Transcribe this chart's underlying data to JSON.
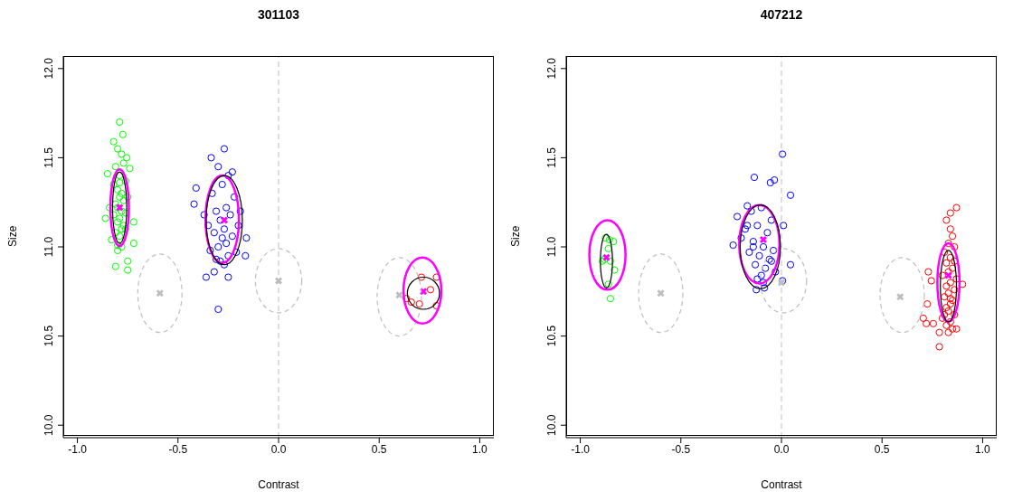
{
  "chart_data": [
    {
      "type": "scatter",
      "title": "301103",
      "xlabel": "Contrast",
      "ylabel": "Size",
      "xlim": [
        -1.07,
        1.07
      ],
      "ylim": [
        9.93,
        12.07
      ],
      "xticks": [
        {
          "value": -1,
          "label": "-1.0"
        },
        {
          "value": -0.5,
          "label": "-0.5"
        },
        {
          "value": 0,
          "label": "0.0"
        },
        {
          "value": 0.5,
          "label": "0.5"
        },
        {
          "value": 1,
          "label": "1.0"
        }
      ],
      "yticks": [
        {
          "value": 10,
          "label": "10.0"
        },
        {
          "value": 10.5,
          "label": "10.5"
        },
        {
          "value": 11,
          "label": "11.0"
        },
        {
          "value": 11.5,
          "label": "11.5"
        },
        {
          "value": 12,
          "label": "12.0"
        }
      ],
      "grid": false,
      "legend": false,
      "ref_lines": [
        {
          "axis": "x",
          "value": 0,
          "color": "#bebebe",
          "line_style": "dashed"
        }
      ],
      "series": [
        {
          "marker": "circle",
          "color": "#00ff00",
          "x": [
            -0.79,
            -0.774,
            -0.82,
            -0.755,
            -0.74,
            -0.85,
            -0.8,
            -0.81,
            -0.75,
            -0.75,
            -0.72,
            -0.86,
            -0.72,
            -0.8,
            -0.78,
            -0.77,
            -0.81,
            -0.79,
            -0.76,
            -0.82,
            -0.8,
            -0.78,
            -0.79,
            -0.77,
            -0.81,
            -0.8,
            -0.78,
            -0.76,
            -0.82,
            -0.79,
            -0.8,
            -0.77,
            -0.78,
            -0.81,
            -0.79,
            -0.83,
            -0.75,
            -0.84,
            -0.76,
            -0.79,
            -0.8,
            -0.78
          ],
          "values": [
            11.7,
            11.63,
            11.59,
            11.5,
            11.44,
            11.41,
            10.98,
            10.89,
            10.92,
            10.87,
            11.02,
            11.16,
            11.14,
            11.55,
            11.52,
            11.47,
            11.45,
            11.4,
            11.37,
            11.35,
            11.32,
            11.3,
            11.28,
            11.26,
            11.24,
            11.22,
            11.2,
            11.19,
            11.18,
            11.16,
            11.14,
            11.12,
            11.1,
            11.08,
            11.06,
            11.04,
            11.28,
            11.22,
            11.1,
            11.36,
            11.01,
            11.0
          ]
        },
        {
          "marker": "circle",
          "color": "#0000ff",
          "x": [
            -0.27,
            -0.335,
            -0.23,
            -0.41,
            -0.42,
            -0.16,
            -0.165,
            -0.36,
            -0.25,
            -0.3,
            -0.32,
            -0.3,
            -0.25,
            -0.28,
            -0.33,
            -0.22,
            -0.26,
            -0.31,
            -0.24,
            -0.29,
            -0.35,
            -0.2,
            -0.27,
            -0.32,
            -0.23,
            -0.28,
            -0.26,
            -0.3,
            -0.34,
            -0.21,
            -0.25,
            -0.29,
            -0.27,
            -0.37,
            -0.19,
            -0.31
          ],
          "values": [
            11.55,
            11.5,
            11.42,
            11.33,
            11.24,
            11.05,
            10.95,
            10.83,
            10.83,
            10.65,
            10.86,
            11.45,
            11.4,
            11.35,
            11.3,
            11.28,
            11.22,
            11.2,
            11.18,
            11.15,
            11.12,
            11.12,
            11.1,
            11.08,
            11.06,
            11.05,
            11.02,
            11.0,
            10.98,
            10.97,
            10.95,
            10.92,
            10.9,
            11.18,
            11.2,
            10.93
          ]
        },
        {
          "marker": "circle",
          "color": "#ff0000",
          "x": [
            0.71,
            0.785,
            0.755,
            0.635,
            0.66,
            0.7,
            0.785
          ],
          "values": [
            10.83,
            10.83,
            10.76,
            10.71,
            10.69,
            10.68,
            10.67
          ]
        },
        {
          "marker": "cross",
          "color": "#bebebe",
          "x": [
            -0.59,
            0,
            0.6
          ],
          "values": [
            10.74,
            10.81,
            10.73
          ]
        },
        {
          "marker": "cross",
          "color": "#ff00ff",
          "x": [
            -0.79,
            -0.27,
            0.72
          ],
          "values": [
            11.22,
            11.15,
            10.75
          ]
        }
      ]
    },
    {
      "type": "scatter",
      "title": "407212",
      "xlabel": "Contrast",
      "ylabel": "Size",
      "xlim": [
        -1.07,
        1.07
      ],
      "ylim": [
        9.93,
        12.07
      ],
      "xticks": [
        {
          "value": -1,
          "label": "-1.0"
        },
        {
          "value": -0.5,
          "label": "-0.5"
        },
        {
          "value": 0,
          "label": "0.0"
        },
        {
          "value": 0.5,
          "label": "0.5"
        },
        {
          "value": 1,
          "label": "1.0"
        }
      ],
      "yticks": [
        {
          "value": 10,
          "label": "10.0"
        },
        {
          "value": 10.5,
          "label": "10.5"
        },
        {
          "value": 11,
          "label": "11.0"
        },
        {
          "value": 11.5,
          "label": "11.5"
        },
        {
          "value": 12,
          "label": "12.0"
        }
      ],
      "grid": false,
      "legend": false,
      "ref_lines": [
        {
          "axis": "x",
          "value": 0,
          "color": "#bebebe",
          "line_style": "dashed"
        }
      ],
      "series": [
        {
          "marker": "circle",
          "color": "#00ff00",
          "x": [
            -0.875,
            -0.835,
            -0.86,
            -0.88,
            -0.85,
            -0.89,
            -0.83,
            -0.86,
            -0.85,
            -0.855
          ],
          "values": [
            11.05,
            11.03,
            10.99,
            10.93,
            10.92,
            10.92,
            10.87,
            10.79,
            10.71,
            11.04
          ]
        },
        {
          "marker": "circle",
          "color": "#0000ff",
          "x": [
            0.005,
            -0.135,
            -0.055,
            -0.035,
            0.045,
            -0.17,
            -0.22,
            -0.24,
            0.045,
            0.005,
            -0.125,
            -0.085,
            0.01,
            -0.15,
            -0.1,
            -0.05,
            -0.18,
            -0.12,
            -0.07,
            -0.2,
            -0.14,
            -0.09,
            -0.04,
            -0.16,
            -0.11,
            -0.06,
            -0.13,
            -0.08,
            -0.03,
            -0.17,
            -0.1,
            -0.12,
            -0.05,
            -0.09,
            -0.14
          ],
          "values": [
            11.52,
            11.39,
            11.36,
            11.375,
            11.29,
            11.23,
            11.17,
            11.01,
            10.9,
            10.81,
            10.76,
            10.77,
            11.12,
            11.2,
            11.22,
            11.15,
            11.1,
            11.12,
            11.08,
            11.05,
            11.03,
            11.0,
            10.98,
            10.97,
            10.95,
            10.93,
            10.9,
            10.88,
            10.86,
            11.12,
            10.84,
            10.82,
            10.92,
            10.8,
            11.0
          ]
        },
        {
          "marker": "circle",
          "color": "#ff0000",
          "x": [
            0.87,
            0.84,
            0.73,
            0.745,
            0.725,
            0.705,
            0.72,
            0.755,
            0.785,
            0.785,
            0.9,
            0.87,
            0.82,
            0.84,
            0.85,
            0.83,
            0.86,
            0.81,
            0.84,
            0.82,
            0.85,
            0.83,
            0.8,
            0.87,
            0.84,
            0.82,
            0.86,
            0.83,
            0.81,
            0.85,
            0.84,
            0.82,
            0.83,
            0.86,
            0.8,
            0.84,
            0.82,
            0.85,
            0.83,
            0.81,
            0.84,
            0.86
          ],
          "values": [
            11.22,
            11.19,
            10.86,
            10.81,
            10.68,
            10.6,
            10.57,
            10.57,
            10.52,
            10.44,
            10.79,
            10.54,
            11.15,
            11.1,
            11.06,
            11.02,
            11.0,
            10.97,
            10.94,
            10.91,
            10.88,
            10.86,
            10.84,
            10.82,
            10.8,
            10.78,
            10.76,
            10.74,
            10.72,
            10.7,
            10.68,
            10.66,
            10.64,
            10.62,
            10.6,
            10.58,
            10.56,
            10.54,
            10.52,
            10.62,
            10.71,
            10.92
          ]
        },
        {
          "marker": "cross",
          "color": "#bebebe",
          "x": [
            -0.6,
            0,
            0.59
          ],
          "values": [
            10.74,
            10.8,
            10.72
          ]
        },
        {
          "marker": "cross",
          "color": "#ff00ff",
          "x": [
            -0.87,
            -0.09,
            0.83
          ],
          "values": [
            10.94,
            11.04,
            10.84
          ]
        }
      ]
    }
  ]
}
